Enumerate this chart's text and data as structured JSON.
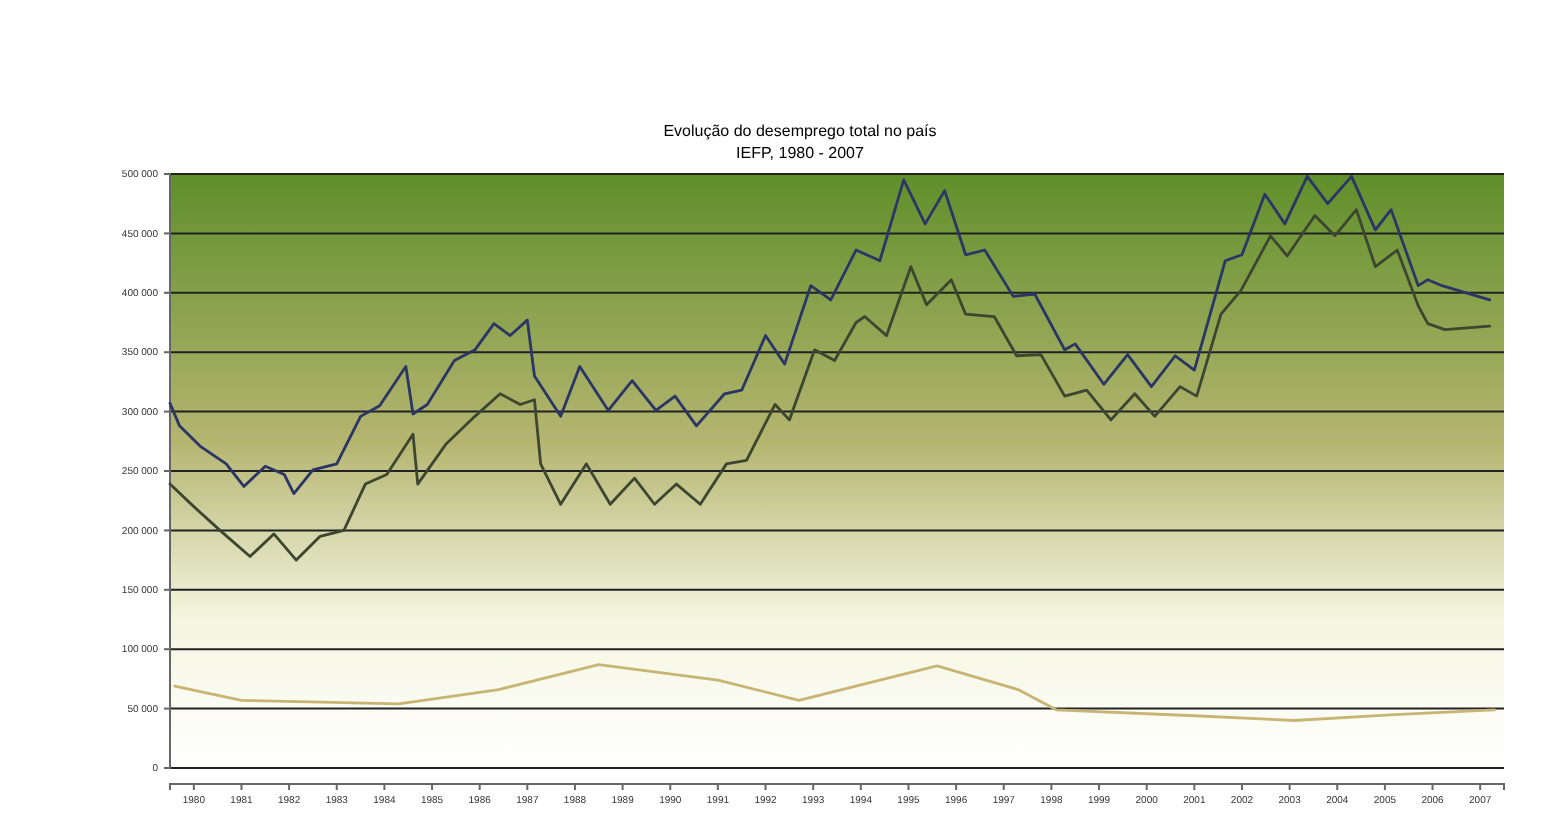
{
  "chart_data": {
    "type": "line",
    "title": "Evolução do desemprego total no país",
    "subtitle": "IEFP, 1980 - 2007",
    "xlim": [
      1980,
      2008
    ],
    "xticks": [
      {
        "value": 1980.5,
        "label": "1980"
      },
      {
        "value": 1981.5,
        "label": "1981"
      },
      {
        "value": 1982.5,
        "label": "1982"
      },
      {
        "value": 1983.5,
        "label": "1983"
      },
      {
        "value": 1984.5,
        "label": "1984"
      },
      {
        "value": 1985.5,
        "label": "1985"
      },
      {
        "value": 1986.5,
        "label": "1986"
      },
      {
        "value": 1987.5,
        "label": "1987"
      },
      {
        "value": 1988.5,
        "label": "1988"
      },
      {
        "value": 1989.5,
        "label": "1989"
      },
      {
        "value": 1990.5,
        "label": "1990"
      },
      {
        "value": 1991.5,
        "label": "1991"
      },
      {
        "value": 1992.5,
        "label": "1992"
      },
      {
        "value": 1993.5,
        "label": "1993"
      },
      {
        "value": 1994.5,
        "label": "1994"
      },
      {
        "value": 1995.5,
        "label": "1995"
      },
      {
        "value": 1996.5,
        "label": "1996"
      },
      {
        "value": 1997.5,
        "label": "1997"
      },
      {
        "value": 1998.5,
        "label": "1998"
      },
      {
        "value": 1999.5,
        "label": "1999"
      },
      {
        "value": 2000.5,
        "label": "2000"
      },
      {
        "value": 2001.5,
        "label": "2001"
      },
      {
        "value": 2002.5,
        "label": "2002"
      },
      {
        "value": 2003.5,
        "label": "2003"
      },
      {
        "value": 2004.5,
        "label": "2004"
      },
      {
        "value": 2005.5,
        "label": "2005"
      },
      {
        "value": 2006.5,
        "label": "2006"
      },
      {
        "value": 2007.5,
        "label": "2007"
      }
    ],
    "ylim": [
      0,
      500000
    ],
    "yticks": [
      0,
      {
        "value": 50000,
        "label": "50 000"
      },
      {
        "value": 100000,
        "label": "100 000"
      },
      {
        "value": 150000,
        "label": "150 000"
      },
      {
        "value": 200000,
        "label": "200 000"
      },
      {
        "value": 250000,
        "label": "250 000"
      },
      {
        "value": 300000,
        "label": "300 000"
      },
      {
        "value": 350000,
        "label": "350 000"
      },
      {
        "value": 400000,
        "label": "400 000"
      },
      {
        "value": 450000,
        "label": "450 000"
      },
      {
        "value": 500000,
        "label": "500 000"
      }
    ],
    "grid": "y",
    "marker": "none",
    "line_style": "solid",
    "series": [
      {
        "color": "#2b3566",
        "x": [
          1980.0,
          1980.2,
          1980.63,
          1981.18,
          1981.55,
          1982.0,
          1982.4,
          1982.6,
          1983.0,
          1983.5,
          1984.0,
          1984.4,
          1984.95,
          1985.1,
          1985.4,
          1985.97,
          1986.4,
          1986.8,
          1987.14,
          1987.5,
          1987.65,
          1988.2,
          1988.6,
          1989.2,
          1989.7,
          1990.2,
          1990.6,
          1991.05,
          1991.64,
          1992.0,
          1992.5,
          1992.9,
          1993.45,
          1993.87,
          1994.4,
          1994.9,
          1995.4,
          1995.85,
          1996.26,
          1996.7,
          1997.1,
          1997.7,
          1998.15,
          1998.78,
          1999.0,
          1999.6,
          2000.1,
          2000.6,
          2001.1,
          2001.5,
          2002.15,
          2002.5,
          2002.98,
          2003.4,
          2003.87,
          2004.3,
          2004.8,
          2005.3,
          2005.63,
          2006.2,
          2006.4,
          2006.7,
          2007.7
        ],
        "values": [
          307000,
          288000,
          271000,
          256000,
          237000,
          254000,
          247000,
          231000,
          251000,
          256000,
          296000,
          305000,
          338000,
          298000,
          306000,
          343000,
          352000,
          374000,
          364000,
          377000,
          330000,
          296000,
          338000,
          301000,
          326000,
          301000,
          313000,
          288000,
          315000,
          318000,
          364000,
          340000,
          406000,
          394000,
          436000,
          427000,
          495000,
          458000,
          486000,
          432000,
          436000,
          397000,
          399000,
          352000,
          357000,
          323000,
          348000,
          321000,
          347000,
          335000,
          427000,
          432000,
          483000,
          458000,
          498000,
          475000,
          498000,
          453000,
          470000,
          406000,
          411000,
          406000,
          394000
        ]
      },
      {
        "color": "#3d4630",
        "x": [
          1980.0,
          1980.5,
          1981.05,
          1981.68,
          1982.18,
          1982.65,
          1983.15,
          1983.65,
          1984.1,
          1984.55,
          1985.1,
          1985.2,
          1985.8,
          1986.4,
          1986.93,
          1987.35,
          1987.65,
          1987.78,
          1988.2,
          1988.74,
          1989.24,
          1989.75,
          1990.17,
          1990.63,
          1991.13,
          1991.68,
          1992.1,
          1992.7,
          1993.0,
          1993.53,
          1993.95,
          1994.4,
          1994.58,
          1995.04,
          1995.55,
          1995.88,
          1996.4,
          1996.7,
          1997.3,
          1997.77,
          1998.28,
          1998.78,
          1999.24,
          1999.75,
          2000.25,
          2000.67,
          2001.2,
          2001.55,
          2002.06,
          2002.48,
          2003.1,
          2003.45,
          2004.03,
          2004.45,
          2004.9,
          2005.3,
          2005.76,
          2006.2,
          2006.4,
          2006.76,
          2007.7
        ],
        "values": [
          239000,
          220000,
          200000,
          178000,
          197000,
          175000,
          195000,
          200000,
          239000,
          247000,
          281000,
          239000,
          273000,
          296000,
          315000,
          306000,
          310000,
          256000,
          222000,
          256000,
          222000,
          244000,
          222000,
          239000,
          222000,
          256000,
          259000,
          306000,
          293000,
          352000,
          343000,
          375000,
          380000,
          364000,
          422000,
          390000,
          411000,
          382000,
          380000,
          347000,
          348000,
          313000,
          318000,
          293000,
          315000,
          296000,
          321000,
          313000,
          382000,
          402000,
          448000,
          431000,
          465000,
          448000,
          470000,
          422000,
          436000,
          389000,
          374000,
          369000,
          372000
        ]
      },
      {
        "color": "#c9b474",
        "x": [
          1980.1,
          1981.5,
          1984.8,
          1986.9,
          1989.0,
          1991.5,
          1993.2,
          1996.1,
          1997.8,
          1998.6,
          2001.5,
          2003.6,
          2005.7,
          2007.8
        ],
        "values": [
          69000,
          57000,
          54000,
          66000,
          87000,
          74000,
          57000,
          86000,
          66000,
          49000,
          44000,
          40000,
          45000,
          49000
        ]
      }
    ]
  }
}
